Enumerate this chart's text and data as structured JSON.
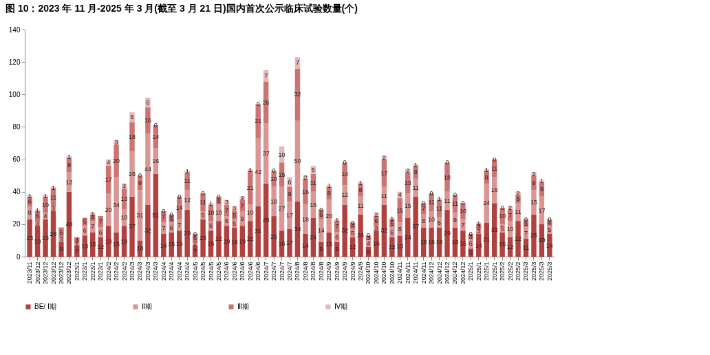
{
  "chart_data": {
    "type": "bar",
    "title": "图 10：2023 年 11 月-2025 年 3 月(截至 3 月 21 日)国内首次公示临床试验数量(个)",
    "stacked": true,
    "data_labels": true,
    "legend": "bottom",
    "ylim": [
      0,
      140
    ],
    "yticks": [
      0,
      20,
      40,
      60,
      80,
      100,
      120,
      140
    ],
    "categories": [
      "2023/11",
      "2023/12",
      "2023/12",
      "2023/12",
      "2023/12",
      "2023/12",
      "2023/1",
      "2023/1",
      "2023/1",
      "2023/1",
      "2024/2",
      "2024/2",
      "2024/2",
      "2024/3",
      "2024/3",
      "2024/3",
      "2024/3",
      "2024/4",
      "2024/4",
      "2024/4",
      "2024/4",
      "2024/5",
      "2024/5",
      "2024/5",
      "2024/5",
      "2024/6",
      "2024/6",
      "2024/6",
      "2024/6",
      "2024/6",
      "2024/7",
      "2024/7",
      "2024/7",
      "2024/7",
      "2024/8",
      "2024/8",
      "2024/8",
      "2024/8",
      "2024/9",
      "2024/9",
      "2024/9",
      "2024/9",
      "2024/9",
      "2024/10",
      "2024/10",
      "2024/10",
      "2024/10",
      "2024/11",
      "2024/11",
      "2024/11",
      "2024/11",
      "2024/12",
      "2024/12",
      "2024/12",
      "2024/12",
      "2024/12",
      "2025/1",
      "2025/1",
      "2025/1",
      "2025/1",
      "2025/2",
      "2025/2",
      "2025/2",
      "2025/3",
      "2025/3",
      "2025/3",
      "2025/3"
    ],
    "series": [
      {
        "name": "BE/ Ⅰ期",
        "color": "#b0413e",
        "values": [
          23,
          19,
          23,
          28,
          9,
          40,
          7,
          13,
          15,
          12,
          19,
          15,
          19,
          37,
          10,
          32,
          51,
          14,
          15,
          16,
          29,
          7,
          23,
          16,
          22,
          19,
          18,
          19,
          22,
          31,
          45,
          25,
          16,
          17,
          34,
          14,
          24,
          9,
          15,
          9,
          32,
          12,
          26,
          6,
          16,
          32,
          12,
          13,
          24,
          37,
          18,
          18,
          18,
          29,
          18,
          16,
          5,
          14,
          21,
          33,
          15,
          12,
          22,
          11,
          26,
          20,
          14
        ]
      },
      {
        "name": "Ⅱ期",
        "color": "#da9694",
        "values": [
          8,
          3,
          4,
          3,
          3,
          12,
          1,
          6,
          7,
          6,
          20,
          34,
          10,
          28,
          31,
          44,
          16,
          7,
          6,
          7,
          12,
          2,
          5,
          6,
          10,
          6,
          5,
          9,
          10,
          42,
          37,
          18,
          27,
          17,
          50,
          18,
          16,
          14,
          20,
          6,
          12,
          5,
          11,
          4,
          3,
          11,
          6,
          8,
          15,
          11,
          8,
          10,
          6,
          11,
          9,
          7,
          6,
          3,
          24,
          16,
          5,
          10,
          11,
          7,
          15,
          17,
          5
        ]
      },
      {
        "name": "Ⅲ期",
        "color": "#cd7371",
        "values": [
          6,
          6,
          10,
          11,
          6,
          9,
          4,
          5,
          4,
          7,
          17,
          20,
          13,
          18,
          9,
          16,
          14,
          7,
          5,
          14,
          11,
          5,
          11,
          10,
          5,
          7,
          5,
          7,
          21,
          21,
          26,
          10,
          15,
          9,
          32,
          16,
          11,
          6,
          8,
          7,
          14,
          4,
          8,
          3,
          6,
          17,
          5,
          15,
          13,
          8,
          7,
          11,
          11,
          18,
          11,
          10,
          3,
          3,
          8,
          11,
          10,
          7,
          5,
          5,
          9,
          9,
          4
        ]
      },
      {
        "name": "Ⅳ期",
        "color": "#e6b9b8",
        "values": [
          1,
          1,
          1,
          1,
          null,
          1,
          null,
          null,
          1,
          null,
          4,
          3,
          3,
          6,
          0,
          6,
          0,
          0,
          0,
          0,
          1,
          0,
          0,
          1,
          0,
          3,
          3,
          2,
          1,
          0,
          7,
          0,
          10,
          6,
          7,
          2,
          5,
          0,
          1,
          1,
          0,
          0,
          1,
          0,
          2,
          2,
          1,
          4,
          2,
          1,
          0,
          0,
          1,
          0,
          0,
          0,
          0,
          1,
          1,
          0,
          0,
          2,
          2,
          0,
          2,
          1,
          0
        ]
      }
    ]
  }
}
